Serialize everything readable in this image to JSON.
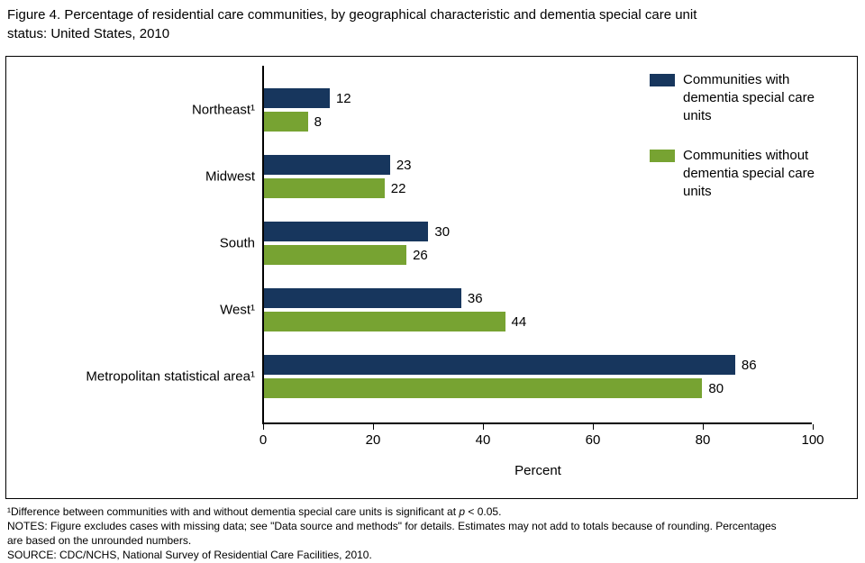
{
  "title": "Figure 4. Percentage of residential care communities, by geographical characteristic and dementia special care unit\nstatus: United States, 2010",
  "chart_data": {
    "type": "bar",
    "orientation": "horizontal",
    "title": "Figure 4. Percentage of residential care communities, by geographical characteristic and dementia special care unit status: United States, 2010",
    "categories": [
      "Northeast¹",
      "Midwest",
      "South",
      "West¹",
      "Metropolitan statistical area¹"
    ],
    "series": [
      {
        "name": "Communities with dementia special care units",
        "color": "#17365d",
        "values": [
          12,
          23,
          30,
          36,
          86
        ]
      },
      {
        "name": "Communities without dementia special care units",
        "color": "#77a332",
        "values": [
          8,
          22,
          26,
          44,
          80
        ]
      }
    ],
    "xlabel": "Percent",
    "xlim": [
      0,
      100
    ],
    "xticks": [
      0,
      20,
      40,
      60,
      80,
      100
    ],
    "grid": false,
    "legend_position": "top-right",
    "value_labels": true
  },
  "footnotes": {
    "significance": {
      "before": "¹Difference between communities with and without dementia special care units is significant at ",
      "italic": "p",
      "after": " < 0.05."
    },
    "notes": "NOTES: Figure excludes cases with missing data; see \"Data source and methods\" for details. Estimates may not add to totals because of rounding. Percentages\nare based on the unrounded numbers.",
    "source": "SOURCE: CDC/NCHS, National Survey of Residential Care Facilities, 2010."
  }
}
